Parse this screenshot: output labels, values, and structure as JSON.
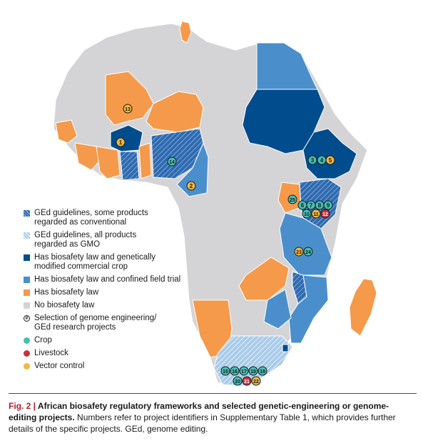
{
  "colors": {
    "hatched_conventional": "#2f6ab0",
    "hatched_gmo": "#a8cbe8",
    "commercial_crop": "#004c8c",
    "field_trial": "#4a8fcc",
    "biosafety_law": "#f5994a",
    "no_law": "#d4d4d6",
    "crop": "#45bfb4",
    "livestock": "#c8303d",
    "vector": "#f0b841"
  },
  "legend": {
    "items": [
      {
        "label": "GEd guidelines, some products\nregarded as conventional",
        "type": "hatch-dark"
      },
      {
        "label": "GEd guidelines, all products\nregarded as GMO",
        "type": "hatch-light"
      },
      {
        "label": "Has biosafety law and genetically\nmodified commercial crop",
        "type": "solid-navy"
      },
      {
        "label": "Has biosafety law and confined field trial",
        "type": "solid-blue"
      },
      {
        "label": "Has biosafety law",
        "type": "solid-orange"
      },
      {
        "label": "No biosafety law",
        "type": "solid-grey"
      },
      {
        "label": "Selection of genome engineering/\nGEd research projects",
        "type": "marker"
      },
      {
        "label": "Crop",
        "type": "dot-crop"
      },
      {
        "label": "Livestock",
        "type": "dot-livestock"
      },
      {
        "label": "Vector control",
        "type": "dot-vector"
      }
    ],
    "marker_symbol": "#"
  },
  "markers": [
    {
      "id": "1",
      "kind": "vector"
    },
    {
      "id": "2",
      "kind": "vector"
    },
    {
      "id": "3",
      "kind": "crop"
    },
    {
      "id": "4",
      "kind": "crop"
    },
    {
      "id": "5",
      "kind": "vector"
    },
    {
      "id": "6",
      "kind": "crop"
    },
    {
      "id": "7",
      "kind": "crop"
    },
    {
      "id": "8",
      "kind": "crop"
    },
    {
      "id": "9",
      "kind": "crop"
    },
    {
      "id": "10",
      "kind": "crop"
    },
    {
      "id": "11",
      "kind": "vector"
    },
    {
      "id": "12",
      "kind": "livestock"
    },
    {
      "id": "13",
      "kind": "vector"
    },
    {
      "id": "14",
      "kind": "crop"
    },
    {
      "id": "15",
      "kind": "crop"
    },
    {
      "id": "16",
      "kind": "crop"
    },
    {
      "id": "17",
      "kind": "crop"
    },
    {
      "id": "18",
      "kind": "crop"
    },
    {
      "id": "19",
      "kind": "crop"
    },
    {
      "id": "20",
      "kind": "crop"
    },
    {
      "id": "21",
      "kind": "livestock"
    },
    {
      "id": "22",
      "kind": "vector"
    },
    {
      "id": "23",
      "kind": "vector"
    },
    {
      "id": "24",
      "kind": "crop"
    },
    {
      "id": "25",
      "kind": "crop"
    }
  ],
  "caption": {
    "fig": "Fig. 2 | ",
    "title": "African biosafety regulatory frameworks and selected genetic-engineering or genome-editing projects.",
    "body": " Numbers refer to project identifiers in Supplementary Table 1, which provides further details of the specific projects. GEd, genome editing."
  }
}
